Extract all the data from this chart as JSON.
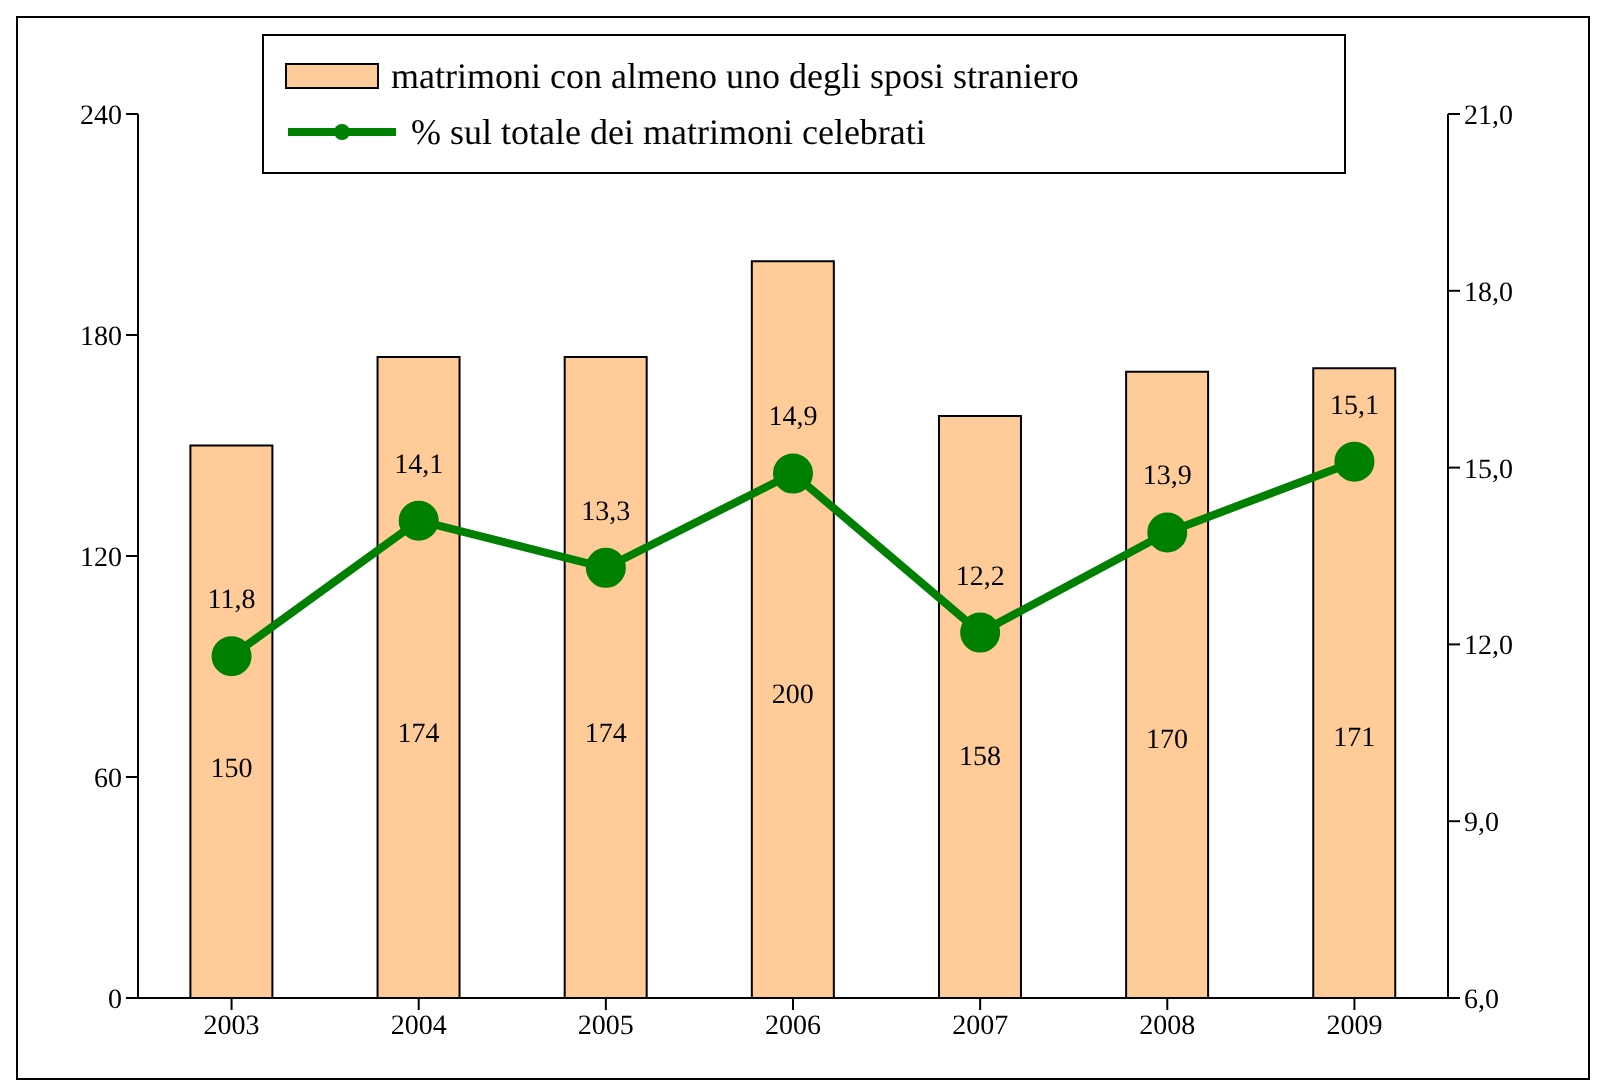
{
  "chart_data": {
    "type": "bar",
    "categories": [
      "2003",
      "2004",
      "2005",
      "2006",
      "2007",
      "2008",
      "2009"
    ],
    "series": [
      {
        "name": "matrimoni con almeno uno degli sposi straniero",
        "color": "#ffcc99",
        "values": [
          150,
          174,
          174,
          200,
          158,
          170,
          171
        ],
        "value_labels": [
          "150",
          "174",
          "174",
          "200",
          "158",
          "170",
          "171"
        ]
      },
      {
        "name": "% sul totale dei matrimoni celebrati",
        "type": "line",
        "axis": "y2",
        "color": "#008000",
        "values": [
          11.8,
          14.1,
          13.3,
          14.9,
          12.2,
          13.9,
          15.1
        ],
        "value_labels": [
          "11,8",
          "14,1",
          "13,3",
          "14,9",
          "12,2",
          "13,9",
          "15,1"
        ]
      }
    ],
    "ylim": [
      0,
      240
    ],
    "yticks": [
      0,
      60,
      120,
      180,
      240
    ],
    "y2lim": [
      6,
      21
    ],
    "y2ticks": [
      {
        "value": 6,
        "label": "6,0"
      },
      {
        "value": 9,
        "label": "9,0"
      },
      {
        "value": 12,
        "label": "12,0"
      },
      {
        "value": 15,
        "label": "15,0"
      },
      {
        "value": 18,
        "label": "18,0"
      },
      {
        "value": 21,
        "label": "21,0"
      }
    ],
    "grid": false,
    "legend": "top",
    "marker": "circle",
    "line_style": "solid"
  }
}
